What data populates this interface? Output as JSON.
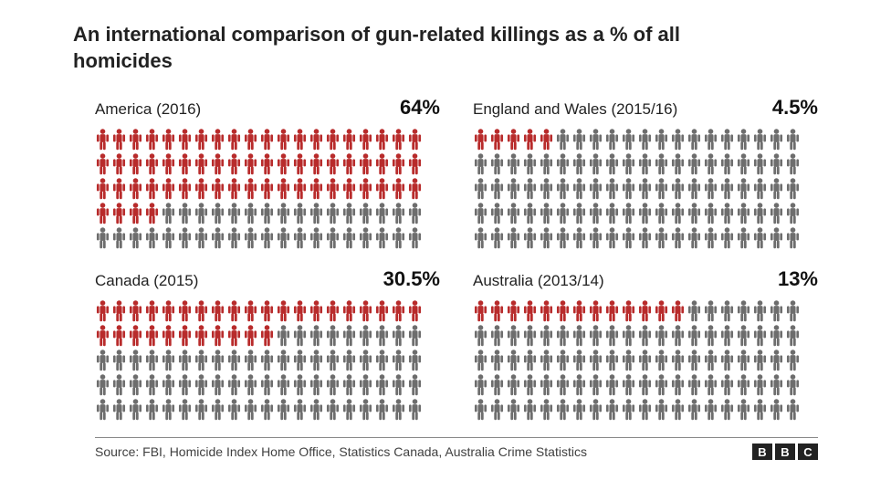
{
  "infographic": {
    "type": "pictogram",
    "title": "An international comparison of gun-related killings as a % of all homicides",
    "icon_rows": 5,
    "icon_cols": 20,
    "icon_total": 100,
    "colors": {
      "highlight": "#b82b2b",
      "muted": "#6d6d6d",
      "background": "#ffffff",
      "text": "#222222",
      "value_text": "#111111",
      "footer_border": "#888888",
      "bbc_bg": "#222222",
      "bbc_fg": "#ffffff"
    },
    "panels": [
      {
        "label": "America (2016)",
        "value_label": "64%",
        "highlighted": 64
      },
      {
        "label": "England and Wales (2015/16)",
        "value_label": "4.5%",
        "highlighted": 5
      },
      {
        "label": "Canada (2015)",
        "value_label": "30.5%",
        "highlighted": 31
      },
      {
        "label": "Australia (2013/14)",
        "value_label": "13%",
        "highlighted": 13
      }
    ],
    "source": "Source: FBI, Homicide Index Home Office, Statistics Canada, Australia Crime Statistics",
    "logo": {
      "letters": [
        "B",
        "B",
        "C"
      ]
    }
  }
}
